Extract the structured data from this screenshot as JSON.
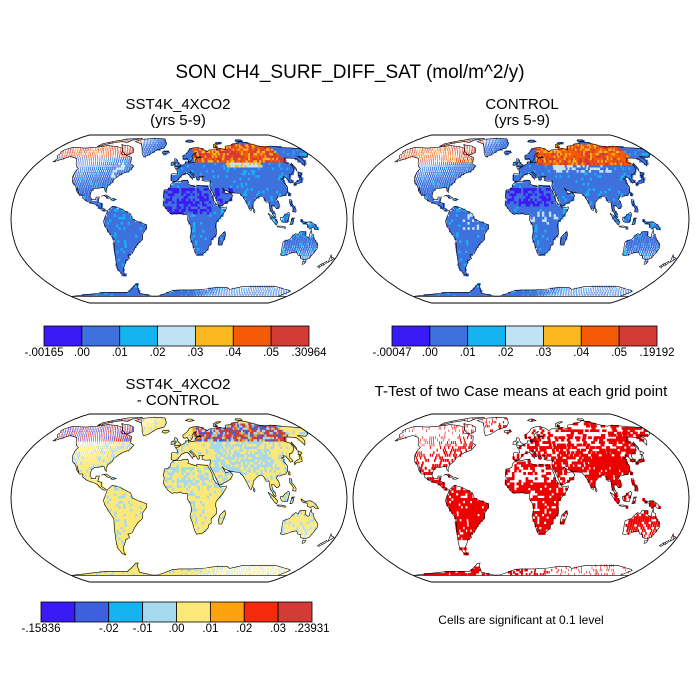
{
  "title": "SON CH4_SURF_DIFF_SAT (mol/m^2/y)",
  "chart_data": [
    {
      "type": "heatmap",
      "map_projection": "Robinson (global)",
      "title_line1": "SST4K_4XCO2",
      "title_line2": "(yrs 5-9)",
      "colorbar": {
        "colors": [
          "#3a1af5",
          "#3f71de",
          "#15b4f0",
          "#bfe3f3",
          "#f9b81e",
          "#f55a07",
          "#d53b36"
        ],
        "tick_labels": [
          "-.00165",
          ".00",
          ".01",
          ".02",
          ".03",
          ".04",
          ".05",
          ".30964"
        ],
        "min": -0.00165,
        "max": 0.30964
      }
    },
    {
      "type": "heatmap",
      "map_projection": "Robinson (global)",
      "title_line1": "CONTROL",
      "title_line2": "(yrs 5-9)",
      "colorbar": {
        "colors": [
          "#3a1af5",
          "#3f71de",
          "#15b4f0",
          "#bfe3f3",
          "#f9b81e",
          "#f55a07",
          "#d53b36"
        ],
        "tick_labels": [
          "-.00047",
          ".00",
          ".01",
          ".02",
          ".03",
          ".04",
          ".05",
          ".19192"
        ],
        "min": -0.00047,
        "max": 0.19192
      }
    },
    {
      "type": "heatmap",
      "map_projection": "Robinson (global)",
      "title_line1": "SST4K_4XCO2",
      "title_line2": "- CONTROL",
      "colorbar": {
        "colors": [
          "#3a1af5",
          "#3f60de",
          "#15b4f0",
          "#a6d8ee",
          "#fbe878",
          "#fba20c",
          "#f52a0c",
          "#d53b36"
        ],
        "tick_labels": [
          "-.15836",
          "-.02",
          "-.01",
          ".00",
          ".01",
          ".02",
          ".03",
          ".23931"
        ],
        "tick_slots": [
          0,
          2,
          3,
          4,
          5,
          6,
          7,
          8
        ],
        "min": -0.15836,
        "max": 0.23931
      }
    },
    {
      "type": "heatmap",
      "map_projection": "Robinson (global)",
      "title_line1": "T-Test of two Case means at each grid point",
      "significance_color": "#ee0000",
      "note": "Cells are significant at 0.1 level"
    }
  ]
}
